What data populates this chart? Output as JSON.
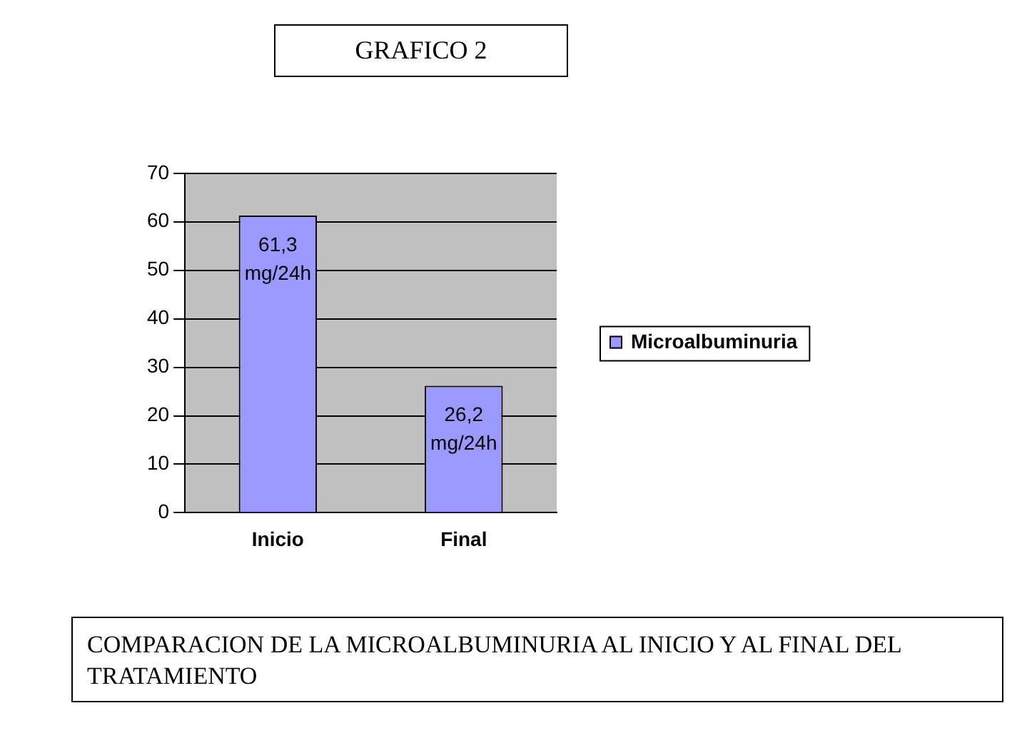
{
  "chart_data": {
    "type": "bar",
    "title": "GRAFICO 2",
    "categories": [
      "Inicio",
      "Final"
    ],
    "series": [
      {
        "name": "Microalbuminuria",
        "color": "#9999ff",
        "values": [
          61.3,
          26.2
        ],
        "value_labels": [
          "61,3 mg/24h",
          "26,2 mg/24h"
        ]
      }
    ],
    "ylim": [
      0,
      70
    ],
    "yticks": [
      0,
      10,
      20,
      30,
      40,
      50,
      60,
      70
    ],
    "grid": "y",
    "legend": "right",
    "annotations": [
      "COMPARACION DE LA MICROALBUMINURIA AL INICIO Y AL FINAL DEL TRATAMIENTO"
    ]
  }
}
